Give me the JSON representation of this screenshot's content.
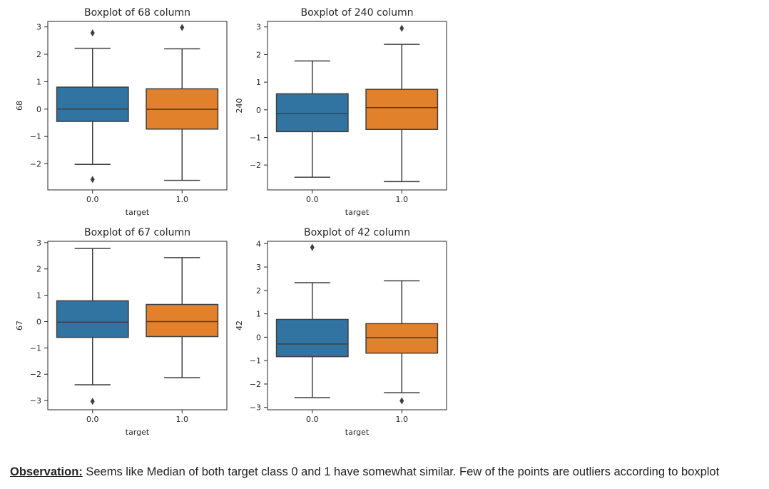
{
  "observation": {
    "lead": "Observation:",
    "text": " Seems like Median of both target class 0 and 1 have somewhat similar. Few of the points are outliers according to boxplot"
  },
  "colors": {
    "class_0": "#3274a1",
    "class_1": "#e1812c",
    "line": "#3f3f3f"
  },
  "chart_data": [
    {
      "type": "box",
      "title": "Boxplot of 68 column",
      "xlabel": "target",
      "ylabel": "68",
      "categories": [
        "0.0",
        "1.0"
      ],
      "ylim": [
        -2.95,
        3.2
      ],
      "yticks": [
        -2,
        -1,
        0,
        1,
        2,
        3
      ],
      "boxes": [
        {
          "category": "0.0",
          "whisker_low": -2.02,
          "q1": -0.45,
          "median": 0.0,
          "q3": 0.8,
          "whisker_high": 2.22,
          "outliers": [
            2.78,
            -2.57
          ]
        },
        {
          "category": "1.0",
          "whisker_low": -2.6,
          "q1": -0.73,
          "median": -0.01,
          "q3": 0.74,
          "whisker_high": 2.2,
          "outliers": [
            2.98
          ]
        }
      ]
    },
    {
      "type": "box",
      "title": "Boxplot of 240 column",
      "xlabel": "target",
      "ylabel": "240",
      "categories": [
        "0.0",
        "1.0"
      ],
      "ylim": [
        -2.9,
        3.2
      ],
      "yticks": [
        -2,
        -1,
        0,
        1,
        2,
        3
      ],
      "boxes": [
        {
          "category": "0.0",
          "whisker_low": -2.44,
          "q1": -0.79,
          "median": -0.14,
          "q3": 0.58,
          "whisker_high": 1.77,
          "outliers": []
        },
        {
          "category": "1.0",
          "whisker_low": -2.6,
          "q1": -0.71,
          "median": 0.08,
          "q3": 0.74,
          "whisker_high": 2.37,
          "outliers": [
            2.95
          ]
        }
      ]
    },
    {
      "type": "box",
      "title": "Boxplot of 67 column",
      "xlabel": "target",
      "ylabel": "67",
      "categories": [
        "0.0",
        "1.0"
      ],
      "ylim": [
        -3.35,
        3.05
      ],
      "yticks": [
        -3,
        -2,
        -1,
        0,
        1,
        2,
        3
      ],
      "boxes": [
        {
          "category": "0.0",
          "whisker_low": -2.4,
          "q1": -0.6,
          "median": -0.02,
          "q3": 0.79,
          "whisker_high": 2.78,
          "outliers": [
            -3.03
          ]
        },
        {
          "category": "1.0",
          "whisker_low": -2.13,
          "q1": -0.57,
          "median": 0.0,
          "q3": 0.65,
          "whisker_high": 2.43,
          "outliers": []
        }
      ]
    },
    {
      "type": "box",
      "title": "Boxplot of 42 column",
      "xlabel": "target",
      "ylabel": "42",
      "categories": [
        "0.0",
        "1.0"
      ],
      "ylim": [
        -3.1,
        4.1
      ],
      "yticks": [
        -3,
        -2,
        -1,
        0,
        1,
        2,
        3,
        4
      ],
      "boxes": [
        {
          "category": "0.0",
          "whisker_low": -2.58,
          "q1": -0.83,
          "median": -0.29,
          "q3": 0.76,
          "whisker_high": 2.33,
          "outliers": [
            3.84
          ]
        },
        {
          "category": "1.0",
          "whisker_low": -2.37,
          "q1": -0.68,
          "median": -0.02,
          "q3": 0.58,
          "whisker_high": 2.41,
          "outliers": [
            -2.72
          ]
        }
      ]
    }
  ]
}
